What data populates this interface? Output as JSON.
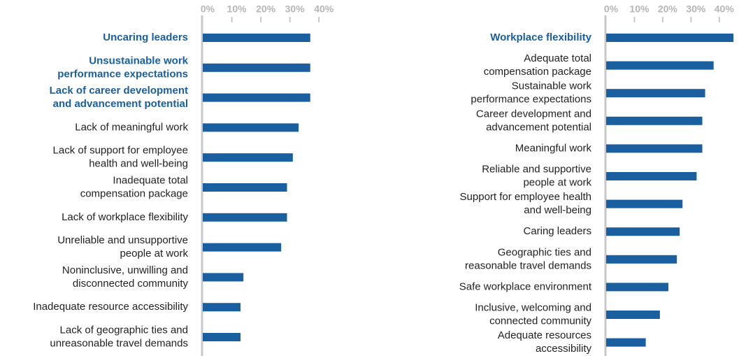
{
  "chart_data": [
    {
      "type": "barh",
      "color": "#1a5fa0",
      "highlight_color": "#1a5fa0",
      "highlighted": [
        0,
        1,
        2
      ],
      "categories": [
        "Uncaring leaders",
        "Unsustainable work\nperformance expectations",
        "Lack of career development\nand advancement potential",
        "Lack of meaningful work",
        "Lack of support for employee\nhealth and well-being",
        "Inadequate total\ncompensation package",
        "Lack of workplace flexibility",
        "Unreliable and unsupportive\npeople at work",
        "Noninclusive, unwilling and\ndisconnected community",
        "Inadequate resource accessibility",
        "Lack of geographic ties and\nunreasonable travel demands"
      ],
      "values": [
        37,
        37,
        37,
        33,
        31,
        29,
        29,
        27,
        14,
        13,
        13
      ],
      "xlim": [
        0,
        45
      ],
      "xticks": [
        {
          "value": 0,
          "label": "0%"
        },
        {
          "value": 10,
          "label": "10%"
        },
        {
          "value": 20,
          "label": "20%"
        },
        {
          "value": 30,
          "label": "30%"
        },
        {
          "value": 40,
          "label": "40%"
        }
      ]
    },
    {
      "type": "barh",
      "color": "#1a5fa0",
      "highlight_color": "#1a5fa0",
      "highlighted": [
        0
      ],
      "categories": [
        "Workplace flexibility",
        "Adequate total\ncompensation package",
        "Sustainable work\nperformance expectations",
        "Career development and\nadvancement potential",
        "Meaningful work",
        "Reliable and supportive\npeople at work",
        "Support for employee health\nand well-being",
        "Caring leaders",
        "Geographic ties and\nreasonable travel demands",
        "Safe workplace environment",
        "Inclusive, welcoming and\nconnected community",
        "Adequate resources\naccessibility"
      ],
      "values": [
        45,
        38,
        35,
        34,
        34,
        32,
        27,
        26,
        25,
        22,
        19,
        14
      ],
      "xlim": [
        0,
        45
      ],
      "xticks": [
        {
          "value": 0,
          "label": "0%"
        },
        {
          "value": 10,
          "label": "10%"
        },
        {
          "value": 20,
          "label": "20%"
        },
        {
          "value": 30,
          "label": "30%"
        },
        {
          "value": 40,
          "label": "40%"
        }
      ]
    }
  ]
}
